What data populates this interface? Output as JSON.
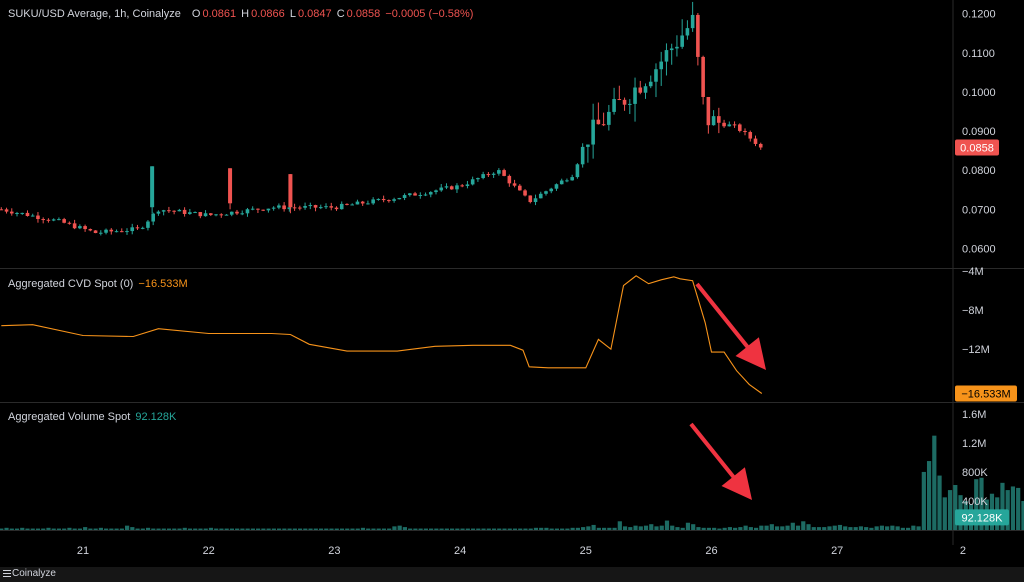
{
  "legend": {
    "title": "SUKU/USD Average, 1h, Coinalyze",
    "o_label": "O",
    "o_value": "0.0861",
    "h_label": "H",
    "h_value": "0.0866",
    "l_label": "L",
    "l_value": "0.0847",
    "c_label": "C",
    "c_value": "0.0858",
    "change": "−0.0005 (−0.58%)"
  },
  "cvd_legend": {
    "title": "Aggregated CVD Spot (0)",
    "value": "−16.533M"
  },
  "vol_legend": {
    "title": "Aggregated Volume Spot",
    "value": "92.128K"
  },
  "footer": {
    "brand": "Coinalyze"
  },
  "colors": {
    "up": "#26a69a",
    "down": "#ef5350",
    "cvd_line": "#f7931a",
    "volume": "#1d6b63",
    "arrow": "#ef3340",
    "background": "#000000"
  },
  "chart_data": [
    {
      "type": "candlestick",
      "title": "SUKU/USD Average, 1h, Coinalyze",
      "ylim": [
        0.055,
        0.1235
      ],
      "y_ticks": [
        "0.1200",
        "0.1100",
        "0.1000",
        "0.0900",
        "0.0800",
        "0.0700",
        "0.0600"
      ],
      "last_value_label": "0.0858",
      "x_ticks": [
        "21",
        "22",
        "23",
        "24",
        "25",
        "26",
        "27",
        "2"
      ],
      "ohlc_keypoints": [
        {
          "day": 20.35,
          "price": 0.07
        },
        {
          "day": 20.8,
          "price": 0.067
        },
        {
          "day": 21.1,
          "price": 0.064
        },
        {
          "day": 21.45,
          "price": 0.065
        },
        {
          "day": 21.6,
          "price": 0.07
        },
        {
          "day": 22.0,
          "price": 0.0685
        },
        {
          "day": 22.5,
          "price": 0.0705
        },
        {
          "day": 23.0,
          "price": 0.0705
        },
        {
          "day": 23.5,
          "price": 0.073
        },
        {
          "day": 24.0,
          "price": 0.076
        },
        {
          "day": 24.3,
          "price": 0.08
        },
        {
          "day": 24.55,
          "price": 0.072
        },
        {
          "day": 24.9,
          "price": 0.079
        },
        {
          "day": 25.0,
          "price": 0.088
        },
        {
          "day": 25.3,
          "price": 0.098
        },
        {
          "day": 25.55,
          "price": 0.106
        },
        {
          "day": 25.85,
          "price": 0.118
        },
        {
          "day": 25.95,
          "price": 0.093
        },
        {
          "day": 26.2,
          "price": 0.091
        },
        {
          "day": 26.4,
          "price": 0.0858
        }
      ],
      "spikes": [
        {
          "day": 21.55,
          "high": 0.081,
          "low": 0.069,
          "dir": "up"
        },
        {
          "day": 22.17,
          "high": 0.0805,
          "low": 0.07,
          "dir": "down"
        },
        {
          "day": 22.65,
          "high": 0.079,
          "low": 0.069,
          "dir": "down"
        }
      ]
    },
    {
      "type": "line",
      "title": "Aggregated CVD Spot (0)",
      "ylim": [
        -17.4,
        -3.8
      ],
      "y_ticks": [
        "−4M",
        "−8M",
        "−12M"
      ],
      "last_value_label": "−16.533M",
      "x": [
        20.35,
        20.6,
        21.0,
        21.4,
        21.6,
        22.0,
        22.5,
        22.65,
        22.8,
        23.1,
        23.5,
        23.8,
        24.1,
        24.4,
        24.5,
        24.55,
        24.7,
        25.0,
        25.1,
        25.2,
        25.3,
        25.4,
        25.5,
        25.6,
        25.7,
        25.75,
        25.85,
        25.95,
        26.0,
        26.1,
        26.2,
        26.3,
        26.4
      ],
      "values": [
        -9.6,
        -9.5,
        -10.6,
        -10.7,
        -9.9,
        -10.4,
        -10.4,
        -10.5,
        -11.5,
        -12.2,
        -12.2,
        -11.7,
        -11.6,
        -11.6,
        -12.1,
        -13.8,
        -13.9,
        -13.9,
        -11.0,
        -12.0,
        -5.5,
        -4.5,
        -5.3,
        -4.9,
        -4.6,
        -4.8,
        -5.0,
        -9.3,
        -12.3,
        -12.3,
        -14.2,
        -15.6,
        -16.533
      ]
    },
    {
      "type": "bar",
      "title": "Aggregated Volume Spot",
      "ylim": [
        0,
        1.75
      ],
      "y_ticks": [
        "1.6M",
        "1.2M",
        "800K",
        "400K"
      ],
      "last_value_label": "92.128K",
      "unit": "M",
      "x_start": 20.35,
      "x_step": 0.0417,
      "values": [
        0.02,
        0.03,
        0.02,
        0.02,
        0.03,
        0.02,
        0.02,
        0.02,
        0.02,
        0.03,
        0.02,
        0.02,
        0.02,
        0.03,
        0.02,
        0.02,
        0.04,
        0.02,
        0.02,
        0.03,
        0.02,
        0.02,
        0.02,
        0.02,
        0.06,
        0.04,
        0.02,
        0.02,
        0.03,
        0.02,
        0.02,
        0.02,
        0.02,
        0.02,
        0.02,
        0.03,
        0.02,
        0.02,
        0.02,
        0.02,
        0.03,
        0.02,
        0.02,
        0.02,
        0.02,
        0.02,
        0.02,
        0.02,
        0.02,
        0.02,
        0.02,
        0.02,
        0.02,
        0.02,
        0.02,
        0.02,
        0.02,
        0.02,
        0.02,
        0.02,
        0.02,
        0.02,
        0.02,
        0.02,
        0.02,
        0.02,
        0.02,
        0.02,
        0.02,
        0.03,
        0.02,
        0.02,
        0.02,
        0.02,
        0.02,
        0.05,
        0.06,
        0.04,
        0.02,
        0.02,
        0.02,
        0.02,
        0.02,
        0.02,
        0.02,
        0.02,
        0.02,
        0.02,
        0.02,
        0.02,
        0.02,
        0.02,
        0.02,
        0.02,
        0.02,
        0.02,
        0.02,
        0.02,
        0.02,
        0.02,
        0.02,
        0.02,
        0.03,
        0.03,
        0.03,
        0.02,
        0.02,
        0.02,
        0.02,
        0.03,
        0.03,
        0.04,
        0.05,
        0.07,
        0.03,
        0.03,
        0.03,
        0.03,
        0.12,
        0.05,
        0.04,
        0.06,
        0.05,
        0.06,
        0.08,
        0.05,
        0.06,
        0.13,
        0.06,
        0.04,
        0.03,
        0.1,
        0.08,
        0.04,
        0.03,
        0.03,
        0.03,
        0.02,
        0.03,
        0.04,
        0.03,
        0.04,
        0.06,
        0.04,
        0.03,
        0.06,
        0.06,
        0.08,
        0.05,
        0.05,
        0.06,
        0.1,
        0.06,
        0.12,
        0.08,
        0.04,
        0.04,
        0.04,
        0.05,
        0.06,
        0.07,
        0.05,
        0.04,
        0.04,
        0.05,
        0.04,
        0.03,
        0.05,
        0.06,
        0.05,
        0.06,
        0.05,
        0.03,
        0.03,
        0.06,
        0.05,
        0.8,
        0.95,
        1.3,
        0.75,
        0.45,
        0.55,
        0.62,
        0.48,
        0.4,
        0.35,
        0.7,
        0.72,
        0.42,
        0.5,
        0.45,
        0.65,
        0.55,
        0.6,
        0.58,
        0.4,
        0.28,
        0.35,
        1.55,
        1.0,
        0.85,
        1.28,
        0.78,
        0.85,
        0.62,
        0.85,
        0.5,
        0.4,
        0.3,
        0.25,
        0.22,
        0.28,
        0.2,
        0.15,
        0.18,
        0.3,
        0.2,
        0.15,
        0.09
      ]
    }
  ]
}
